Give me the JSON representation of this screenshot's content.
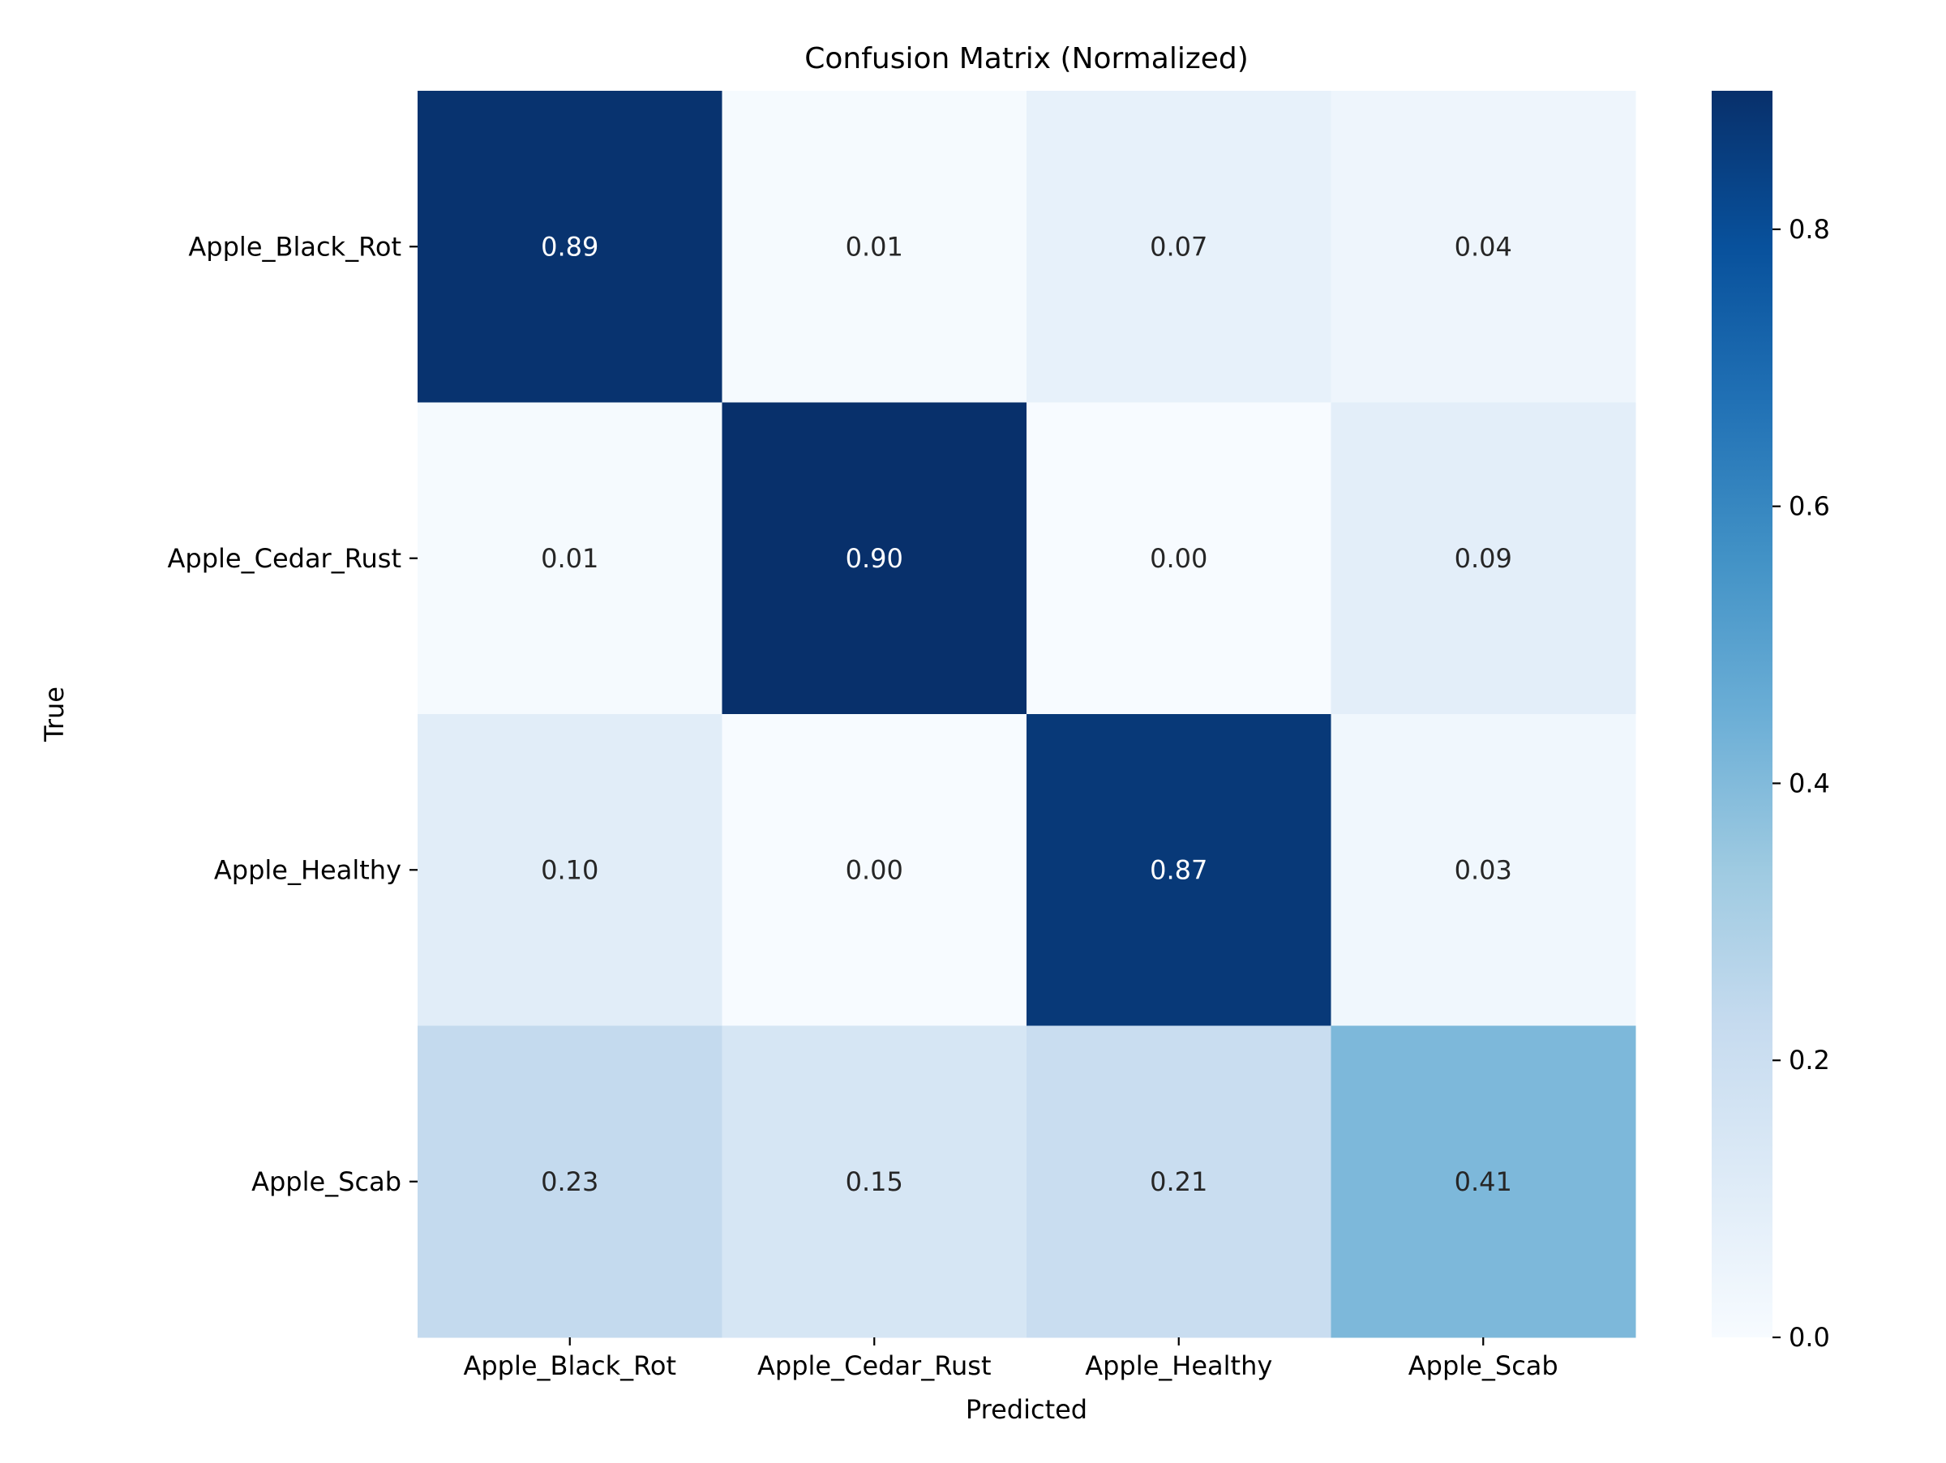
{
  "chart_data": {
    "type": "heatmap",
    "title": "Confusion Matrix (Normalized)",
    "xlabel": "Predicted",
    "ylabel": "True",
    "x_categories": [
      "Apple_Black_Rot",
      "Apple_Cedar_Rust",
      "Apple_Healthy",
      "Apple_Scab"
    ],
    "y_categories": [
      "Apple_Black_Rot",
      "Apple_Cedar_Rust",
      "Apple_Healthy",
      "Apple_Scab"
    ],
    "values": [
      [
        0.89,
        0.01,
        0.07,
        0.04
      ],
      [
        0.01,
        0.9,
        0.0,
        0.09
      ],
      [
        0.1,
        0.0,
        0.87,
        0.03
      ],
      [
        0.23,
        0.15,
        0.21,
        0.41
      ]
    ],
    "value_labels": [
      [
        "0.89",
        "0.01",
        "0.07",
        "0.04"
      ],
      [
        "0.01",
        "0.90",
        "0.00",
        "0.09"
      ],
      [
        "0.10",
        "0.00",
        "0.87",
        "0.03"
      ],
      [
        "0.23",
        "0.15",
        "0.21",
        "0.41"
      ]
    ],
    "colormap": "Blues",
    "colorbar": {
      "min": 0.0,
      "max": 0.9,
      "ticks": [
        0.0,
        0.2,
        0.4,
        0.6,
        0.8
      ],
      "tick_labels": [
        "0.0",
        "0.2",
        "0.4",
        "0.6",
        "0.8"
      ]
    },
    "colors": {
      "text_dark": "#262626",
      "text_light": "#ffffff"
    }
  }
}
